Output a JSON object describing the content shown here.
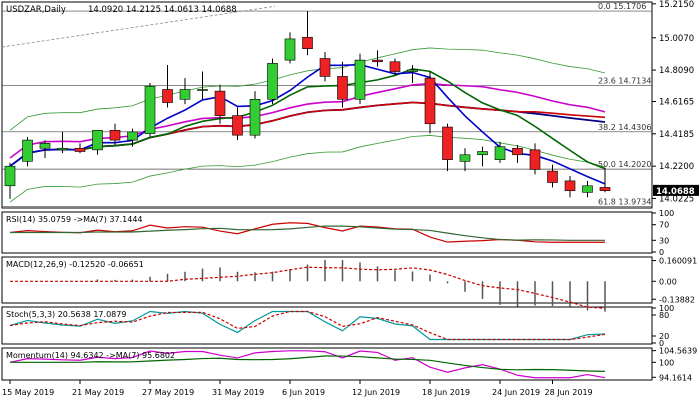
{
  "chart_data": {
    "type": "candlestick",
    "main": {
      "title": "USDZAR,Daily",
      "ohlc_text": "14.0920 14.2125 14.0613 14.0688",
      "current_price": "14.0688",
      "y_ticks": [
        "15.2150",
        "15.0070",
        "14.8090",
        "14.6165",
        "14.4185",
        "14.2200",
        "14.0225"
      ],
      "ylim": [
        13.97,
        15.22
      ],
      "x_labels": [
        "15 May 2019",
        "21 May 2019",
        "27 May 2019",
        "31 May 2019",
        "6 Jun 2019",
        "12 Jun 2019",
        "18 Jun 2019",
        "24 Jun 2019",
        "28 Jun 2019"
      ],
      "fib_levels": [
        {
          "label": "0.0 15.1706",
          "value": 15.1706
        },
        {
          "label": "23.6 14.7134",
          "value": 14.7134
        },
        {
          "label": "38.2 14.4306",
          "value": 14.4306
        },
        {
          "label": "50.0 14.2020",
          "value": 14.202
        },
        {
          "label": "61.8 13.9734",
          "value": 13.9734
        }
      ],
      "candles": [
        {
          "o": 14.1,
          "h": 14.24,
          "l": 14.02,
          "c": 14.22
        },
        {
          "o": 14.25,
          "h": 14.4,
          "l": 14.22,
          "c": 14.38
        },
        {
          "o": 14.33,
          "h": 14.38,
          "l": 14.27,
          "c": 14.36
        },
        {
          "o": 14.32,
          "h": 14.43,
          "l": 14.3,
          "c": 14.33
        },
        {
          "o": 14.33,
          "h": 14.36,
          "l": 14.3,
          "c": 14.31
        },
        {
          "o": 14.32,
          "h": 14.44,
          "l": 14.29,
          "c": 14.44
        },
        {
          "o": 14.44,
          "h": 14.48,
          "l": 14.35,
          "c": 14.38
        },
        {
          "o": 14.38,
          "h": 14.45,
          "l": 14.34,
          "c": 14.43
        },
        {
          "o": 14.42,
          "h": 14.73,
          "l": 14.4,
          "c": 14.71
        },
        {
          "o": 14.69,
          "h": 14.84,
          "l": 14.58,
          "c": 14.61
        },
        {
          "o": 14.63,
          "h": 14.76,
          "l": 14.6,
          "c": 14.69
        },
        {
          "o": 14.69,
          "h": 14.8,
          "l": 14.63,
          "c": 14.69
        },
        {
          "o": 14.68,
          "h": 14.72,
          "l": 14.48,
          "c": 14.53
        },
        {
          "o": 14.53,
          "h": 14.58,
          "l": 14.38,
          "c": 14.41
        },
        {
          "o": 14.41,
          "h": 14.68,
          "l": 14.39,
          "c": 14.63
        },
        {
          "o": 14.63,
          "h": 14.88,
          "l": 14.6,
          "c": 14.85
        },
        {
          "o": 14.87,
          "h": 15.04,
          "l": 14.85,
          "c": 15.0
        },
        {
          "o": 15.01,
          "h": 15.17,
          "l": 14.9,
          "c": 14.94
        },
        {
          "o": 14.88,
          "h": 14.92,
          "l": 14.74,
          "c": 14.77
        },
        {
          "o": 14.77,
          "h": 14.86,
          "l": 14.58,
          "c": 14.63
        },
        {
          "o": 14.63,
          "h": 14.91,
          "l": 14.6,
          "c": 14.87
        },
        {
          "o": 14.87,
          "h": 14.93,
          "l": 14.83,
          "c": 14.86
        },
        {
          "o": 14.86,
          "h": 14.88,
          "l": 14.78,
          "c": 14.8
        },
        {
          "o": 14.8,
          "h": 14.84,
          "l": 14.73,
          "c": 14.81
        },
        {
          "o": 14.76,
          "h": 14.8,
          "l": 14.42,
          "c": 14.48
        },
        {
          "o": 14.46,
          "h": 14.48,
          "l": 14.19,
          "c": 14.26
        },
        {
          "o": 14.25,
          "h": 14.33,
          "l": 14.19,
          "c": 14.29
        },
        {
          "o": 14.29,
          "h": 14.34,
          "l": 14.22,
          "c": 14.31
        },
        {
          "o": 14.26,
          "h": 14.37,
          "l": 14.24,
          "c": 14.34
        },
        {
          "o": 14.33,
          "h": 14.35,
          "l": 14.24,
          "c": 14.29
        },
        {
          "o": 14.32,
          "h": 14.36,
          "l": 14.17,
          "c": 14.2
        },
        {
          "o": 14.19,
          "h": 14.23,
          "l": 14.09,
          "c": 14.12
        },
        {
          "o": 14.13,
          "h": 14.16,
          "l": 14.03,
          "c": 14.07
        },
        {
          "o": 14.06,
          "h": 14.13,
          "l": 14.03,
          "c": 14.1
        },
        {
          "o": 14.09,
          "h": 14.21,
          "l": 14.06,
          "c": 14.07
        }
      ],
      "colors": {
        "bull": "#33cc33",
        "bear": "#ee2222",
        "wick": "#000000",
        "fib": "#444444",
        "bg": "#ffffff",
        "grid": "#dddddd"
      }
    },
    "indicators": {
      "rsi": {
        "label": "RSI(14) 35.0759  ->MA(7) 37.1444",
        "ticks": [
          "100",
          "70",
          "30",
          "0"
        ],
        "lim": [
          0,
          100
        ]
      },
      "macd": {
        "label": "MACD(12,26,9) -0.12520 -0.06651",
        "ticks": [
          "0.160091",
          "0.00",
          "-0.13882"
        ],
        "lim": [
          -0.16,
          0.18
        ]
      },
      "stoch": {
        "label": "Stoch(5,3,3) 20.5638 17.0879",
        "ticks": [
          "100",
          "80",
          "20",
          "0"
        ],
        "lim": [
          0,
          100
        ]
      },
      "momentum": {
        "label": "Momentum(14) 94.6342  ->MA(7) 95.6802",
        "ticks": [
          "104.5639",
          "100",
          "94.1614"
        ],
        "lim": [
          93.5,
          105.2
        ]
      }
    }
  }
}
